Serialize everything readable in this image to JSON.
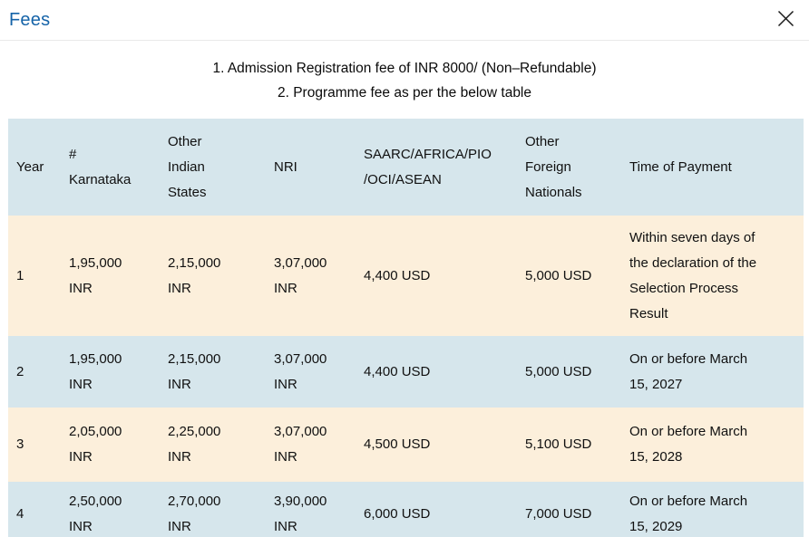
{
  "modal": {
    "title": "Fees",
    "close_icon": "x-close-icon"
  },
  "notes": [
    "1. Admission Registration fee of INR 8000/ (Non–Refundable)",
    "2. Programme fee as per the below table"
  ],
  "colors": {
    "title_color": "#1563a8",
    "row_blue": "#d6e6ec",
    "row_cream": "#fcefdb"
  },
  "table": {
    "columns": [
      {
        "id": "year",
        "label": "Year"
      },
      {
        "id": "karnataka",
        "label": "#\nKarnataka"
      },
      {
        "id": "other-indian-states",
        "label": "Other\nIndian\nStates"
      },
      {
        "id": "nri",
        "label": "NRI"
      },
      {
        "id": "saarc-africa-pio-oci-asean",
        "label": "SAARC/AFRICA/PIO\n/OCI/ASEAN"
      },
      {
        "id": "other-foreign-nationals",
        "label": "Other\nForeign\nNationals"
      },
      {
        "id": "time-of-payment",
        "label": "Time of Payment"
      }
    ],
    "rows": [
      {
        "cells": [
          "1",
          "1,95,000\nINR",
          "2,15,000\nINR",
          "3,07,000\nINR",
          "4,400 USD",
          "5,000 USD",
          "Within seven days of\nthe declaration of the\nSelection Process\nResult"
        ]
      },
      {
        "cells": [
          "2",
          "1,95,000\nINR",
          "2,15,000\nINR",
          "3,07,000\nINR",
          "4,400 USD",
          "5,000 USD",
          "On or before March\n15, 2027"
        ]
      },
      {
        "cells": [
          "3",
          "2,05,000\nINR",
          "2,25,000\nINR",
          "3,07,000\nINR",
          "4,500 USD",
          "5,100 USD",
          "On or before March\n15, 2028"
        ]
      },
      {
        "cells": [
          "4",
          "2,50,000\nINR",
          "2,70,000\nINR",
          "3,90,000\nINR",
          "6,000 USD",
          "7,000 USD",
          "On or before March\n15, 2029"
        ]
      }
    ]
  }
}
